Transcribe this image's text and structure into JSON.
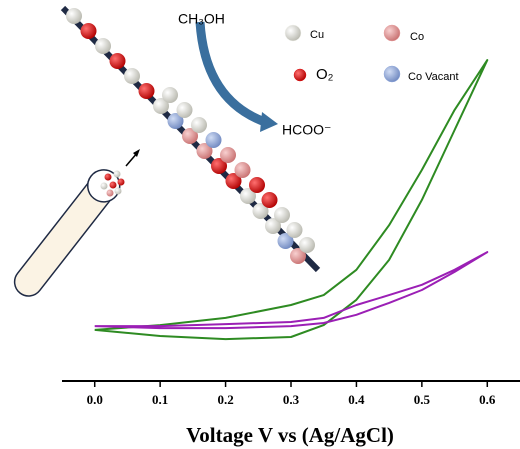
{
  "chart_data": {
    "type": "line",
    "x_label": "Voltage V vs (Ag/AgCl)",
    "x": [
      0,
      0.1,
      0.2,
      0.3,
      0.35,
      0.4,
      0.45,
      0.5,
      0.55,
      0.6,
      0.55,
      0.5,
      0.45,
      0.4,
      0.35,
      0.3,
      0.2,
      0.1,
      0
    ],
    "xlim": [
      -0.05,
      0.65
    ],
    "xticks": [
      {
        "value": 0,
        "label": "0.0"
      },
      0.1,
      0.2,
      0.3,
      0.4,
      0.5,
      0.6
    ],
    "ylim": [
      0,
      1
    ],
    "series": [
      {
        "color": "#2e8b22",
        "values": [
          0.15,
          0.164,
          0.185,
          0.223,
          0.252,
          0.326,
          0.457,
          0.619,
          0.795,
          0.941,
          0.736,
          0.531,
          0.355,
          0.238,
          0.164,
          0.129,
          0.123,
          0.132,
          0.15
        ]
      },
      {
        "color": "#9b1fb5",
        "values": [
          0.161,
          0.161,
          0.167,
          0.173,
          0.185,
          0.223,
          0.252,
          0.282,
          0.326,
          0.378,
          0.32,
          0.267,
          0.229,
          0.194,
          0.17,
          0.161,
          0.155,
          0.155,
          0.161
        ]
      }
    ],
    "annotations": {
      "reactant": "CH₃OH",
      "product": "HCOO⁻"
    },
    "species_legend": [
      {
        "label": "Cu",
        "color": "#f2f2ec"
      },
      {
        "label": "Co",
        "color": "#e8a0a0"
      },
      {
        "label": "O₂",
        "color": "#e01010"
      },
      {
        "label": "Co Vacant",
        "color": "#8fa8dc"
      }
    ]
  }
}
